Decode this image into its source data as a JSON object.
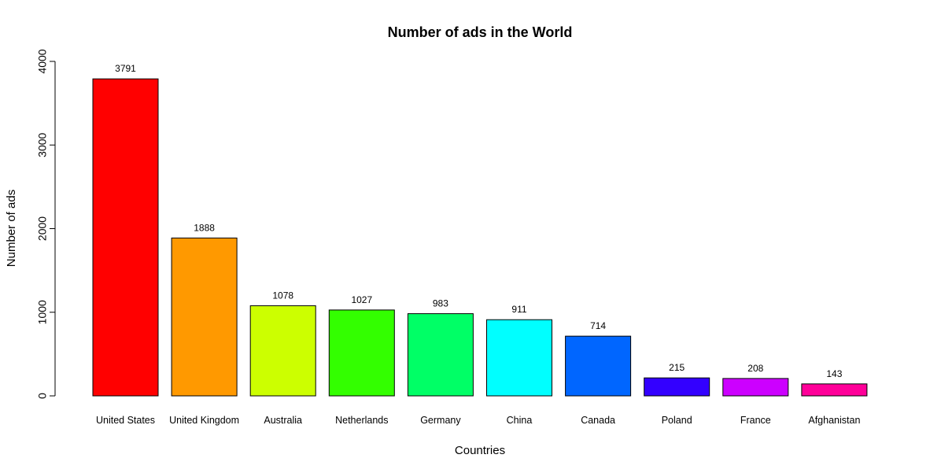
{
  "chart_data": {
    "type": "bar",
    "title": "Number of ads in the World",
    "xlabel": "Countries",
    "ylabel": "Number of ads",
    "categories": [
      "United States",
      "United Kingdom",
      "Australia",
      "Netherlands",
      "Germany",
      "China",
      "Canada",
      "Poland",
      "France",
      "Afghanistan"
    ],
    "values": [
      3791,
      1888,
      1078,
      1027,
      983,
      911,
      714,
      215,
      208,
      143
    ],
    "colors": [
      "#FF0000",
      "#FF9900",
      "#CCFF00",
      "#33FF00",
      "#00FF66",
      "#00FFFF",
      "#0066FF",
      "#3300FF",
      "#CC00FF",
      "#FF0099"
    ],
    "yticks": [
      0,
      1000,
      2000,
      3000,
      4000
    ],
    "ylim": [
      0,
      4000
    ],
    "grid": false,
    "legend": "none"
  }
}
